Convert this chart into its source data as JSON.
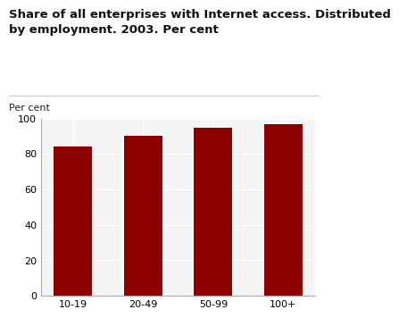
{
  "categories": [
    "10-19",
    "20-49",
    "50-99",
    "100+"
  ],
  "values": [
    84,
    90,
    95,
    97
  ],
  "bar_color": "#8B0000",
  "title": "Share of all enterprises with Internet access. Distributed\nby employment. 2003. Per cent",
  "ylabel": "Per cent",
  "ylim": [
    0,
    100
  ],
  "yticks": [
    0,
    20,
    40,
    60,
    80,
    100
  ],
  "background_color": "#ffffff",
  "plot_bg_color": "#f5f5f5",
  "grid_color": "#ffffff",
  "title_fontsize": 9.5,
  "label_fontsize": 8.0,
  "tick_fontsize": 8.0,
  "bar_width": 0.55
}
